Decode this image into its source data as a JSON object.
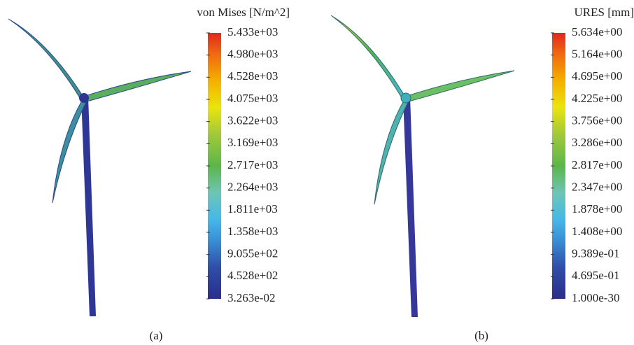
{
  "panels": [
    {
      "legend_title": "von Mises [N/m^2]",
      "scale_labels": [
        "5.433e+03",
        "4.980e+03",
        "4.528e+03",
        "4.075e+03",
        "3.622e+03",
        "3.169e+03",
        "2.717e+03",
        "2.264e+03",
        "1.811e+03",
        "1.358e+03",
        "9.055e+02",
        "4.528e+02",
        "3.263e-02"
      ],
      "caption": "(a)"
    },
    {
      "legend_title": "URES [mm]",
      "scale_labels": [
        "5.634e+00",
        "5.164e+00",
        "4.695e+00",
        "4.225e+00",
        "3.756e+00",
        "3.286e+00",
        "2.817e+00",
        "2.347e+00",
        "1.878e+00",
        "1.408e+00",
        "9.389e-01",
        "4.695e-01",
        "1.000e-30"
      ],
      "caption": "(b)"
    }
  ]
}
